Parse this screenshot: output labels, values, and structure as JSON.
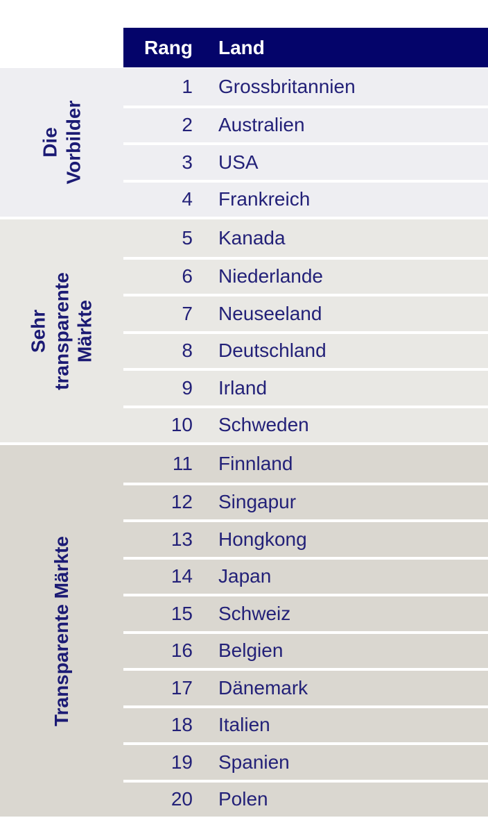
{
  "header": {
    "columns": [
      {
        "label": "Rang"
      },
      {
        "label": "Land"
      }
    ]
  },
  "groups": [
    {
      "id": "die-vorbilder",
      "label": "Die\nVorbilder",
      "bg": "#eeeef2",
      "rows": [
        {
          "rank": "1",
          "country": "Grossbritannien"
        },
        {
          "rank": "2",
          "country": "Australien"
        },
        {
          "rank": "3",
          "country": "USA"
        },
        {
          "rank": "4",
          "country": "Frankreich"
        }
      ]
    },
    {
      "id": "sehr-transparente-maerkte",
      "label": "Sehr\ntransparente\nMärkte",
      "bg": "#e9e8e4",
      "rows": [
        {
          "rank": "5",
          "country": "Kanada"
        },
        {
          "rank": "6",
          "country": "Niederlande"
        },
        {
          "rank": "7",
          "country": "Neuseeland"
        },
        {
          "rank": "8",
          "country": "Deutschland"
        },
        {
          "rank": "9",
          "country": "Irland"
        },
        {
          "rank": "10",
          "country": "Schweden"
        }
      ]
    },
    {
      "id": "transparente-maerkte",
      "label": "Transparente Märkte",
      "bg": "#dad7d0",
      "rows": [
        {
          "rank": "11",
          "country": "Finnland"
        },
        {
          "rank": "12",
          "country": "Singapur"
        },
        {
          "rank": "13",
          "country": "Hongkong"
        },
        {
          "rank": "14",
          "country": "Japan"
        },
        {
          "rank": "15",
          "country": "Schweiz"
        },
        {
          "rank": "16",
          "country": "Belgien"
        },
        {
          "rank": "17",
          "country": "Dänemark"
        },
        {
          "rank": "18",
          "country": "Italien"
        },
        {
          "rank": "19",
          "country": "Spanien"
        },
        {
          "rank": "20",
          "country": "Polen"
        }
      ]
    }
  ],
  "colors": {
    "page_bg": "#ffffff",
    "header_bg": "#04046a",
    "header_text": "#ffffff",
    "row_text": "#232178",
    "label_text": "#1b1a74",
    "separator": "#ffffff"
  }
}
